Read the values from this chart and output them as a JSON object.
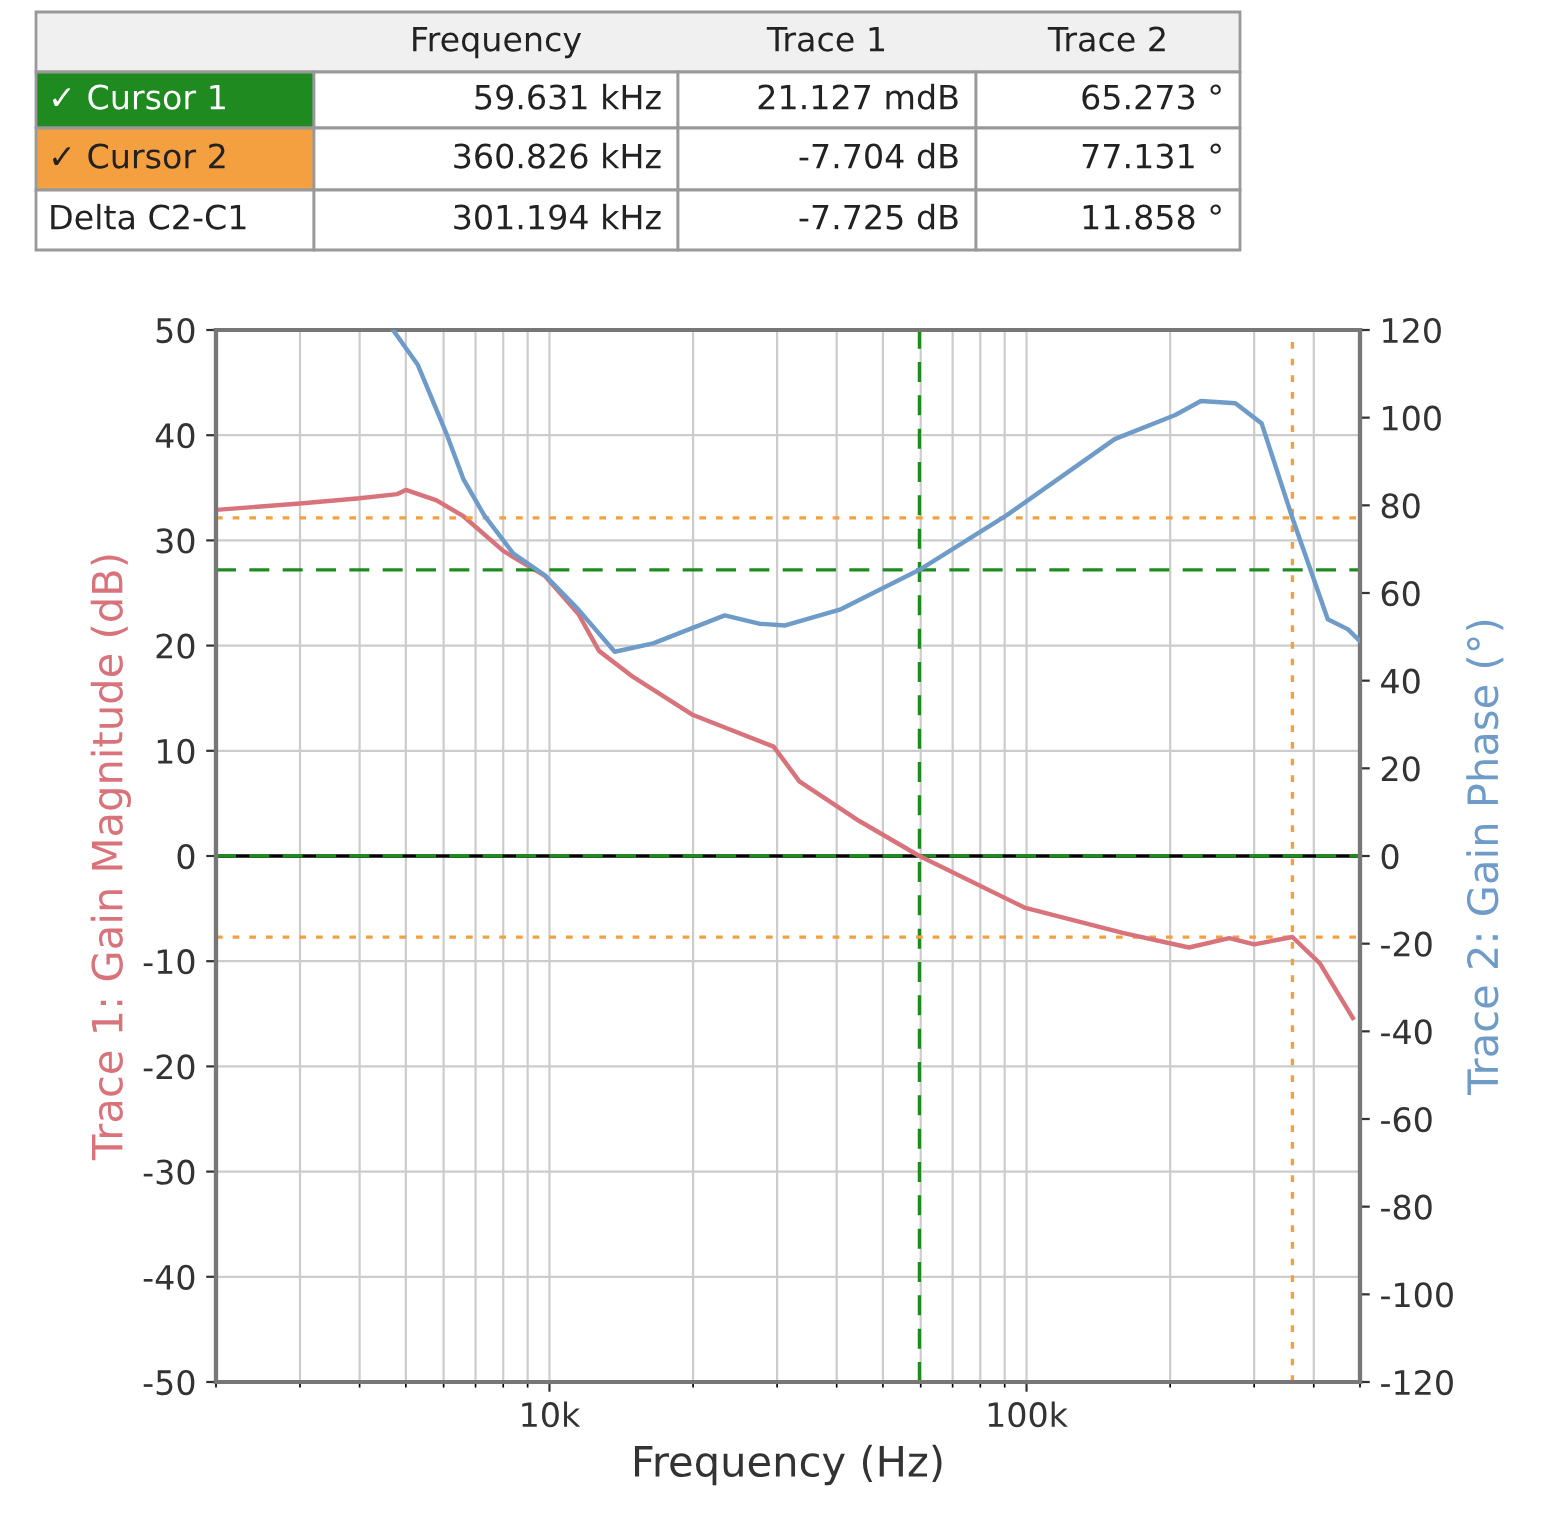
{
  "chart_data": {
    "type": "line",
    "xlabel": "Frequency (Hz)",
    "ylabel": "Trace 1: Gain Magnitude (dB)",
    "y2label": "Trace 2: Gain Phase (°)",
    "log": "x",
    "xlim": [
      2000,
      500000
    ],
    "xticks": [
      {
        "value": 10000,
        "label": "10k"
      },
      {
        "value": 100000,
        "label": "100k"
      }
    ],
    "ylim": [
      -50,
      50
    ],
    "yticks": [
      -50,
      -40,
      -30,
      -20,
      -10,
      0,
      10,
      20,
      30,
      40,
      50
    ],
    "y2lim": [
      -120,
      120
    ],
    "y2ticks": [
      -120,
      -100,
      -80,
      -60,
      -40,
      -20,
      0,
      20,
      40,
      60,
      80,
      100,
      120
    ],
    "grid": true,
    "line_style": "solid",
    "series": [
      {
        "color": "#d9737b",
        "x": [
          2000,
          3000,
          4000,
          4800,
          5000,
          5800,
          6600,
          8000,
          9800,
          11500,
          12700,
          15000,
          20000,
          29500,
          33400,
          44700,
          59631,
          99000,
          159000,
          219000,
          266000,
          300000,
          360826,
          412000,
          483000
        ],
        "values": [
          32.9,
          33.5,
          34.0,
          34.4,
          34.8,
          33.8,
          32.3,
          29.0,
          26.6,
          23.0,
          19.5,
          17.0,
          13.4,
          10.4,
          7.1,
          3.3,
          0.0,
          -4.9,
          -7.3,
          -8.7,
          -7.8,
          -8.4,
          -7.7,
          -10.2,
          -15.4
        ]
      },
      {
        "color": "#6f9bc8",
        "axis": "y2",
        "x": [
          4700,
          5300,
          6100,
          6600,
          7300,
          8400,
          9800,
          11500,
          13700,
          16500,
          23300,
          27500,
          31200,
          40600,
          59631,
          90800,
          153000,
          205000,
          232000,
          274000,
          311000,
          360826,
          428000,
          472000,
          500000
        ],
        "values": [
          120,
          112,
          96,
          86,
          77.7,
          69,
          64,
          56.2,
          46.6,
          48.5,
          54.9,
          53,
          52.6,
          56.2,
          65.3,
          77.7,
          95.1,
          100.6,
          103.8,
          103.3,
          98.7,
          77.1,
          54,
          51.7,
          49
        ]
      }
    ],
    "ref_lines": [
      {
        "axis": "x",
        "value": 59631,
        "color": "#1f8a1f",
        "line_style": "dashed"
      },
      {
        "axis": "x",
        "value": 360826,
        "color": "#f5a040",
        "line_style": "dotted"
      },
      {
        "axis": "y",
        "value": 0,
        "color": "#000000",
        "line_style": "solid"
      },
      {
        "axis": "y",
        "value": 0.021127,
        "color": "#1f8a1f",
        "line_style": "dashed"
      },
      {
        "axis": "y2",
        "value": 65.273,
        "color": "#1f8a1f",
        "line_style": "dashed"
      },
      {
        "axis": "y",
        "value": -7.704,
        "color": "#f5a040",
        "line_style": "dotted"
      },
      {
        "axis": "y2",
        "value": 77.131,
        "color": "#f5a040",
        "line_style": "dotted"
      }
    ],
    "annotations": [
      "Frequency",
      "Trace 1",
      "Trace 2",
      "✓ Cursor 1",
      "59.631 kHz",
      "21.127 mdB",
      "65.273 °",
      "✓ Cursor 2",
      "360.826 kHz",
      "-7.704 dB",
      "77.131 °",
      "Delta C2-C1",
      "301.194 kHz",
      "-7.725 dB",
      "11.858 °"
    ]
  }
}
